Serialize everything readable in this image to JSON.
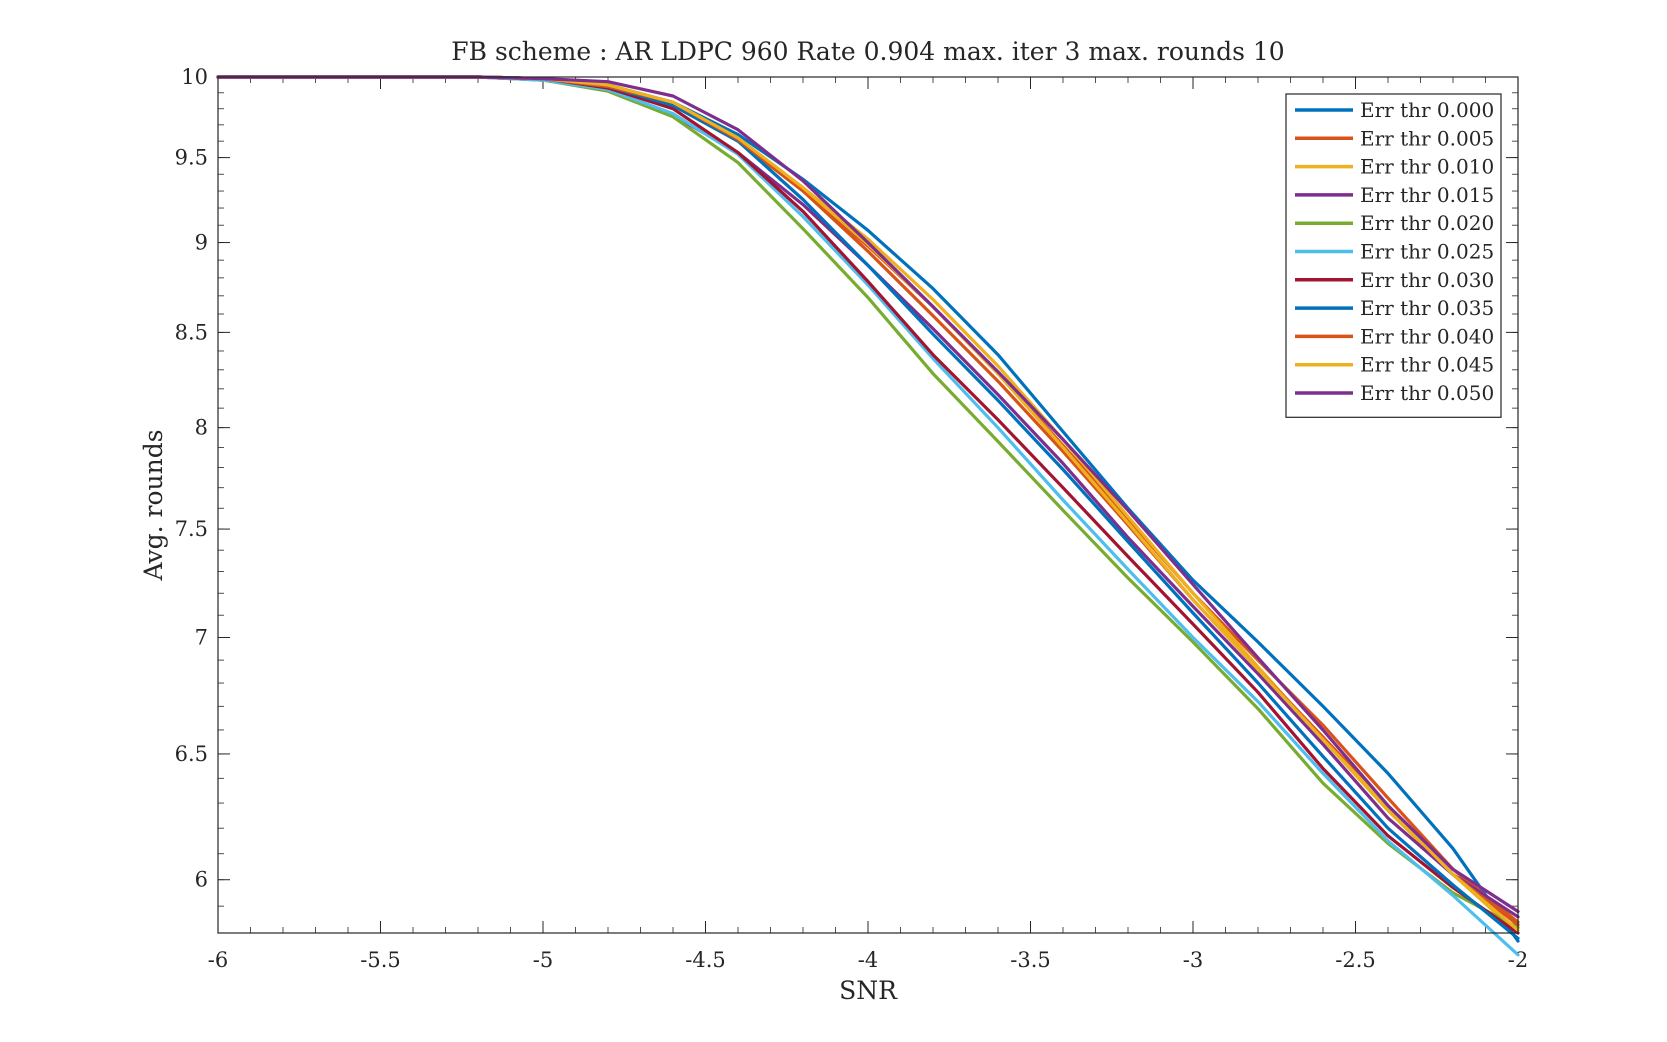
{
  "chart_data": {
    "type": "line",
    "title": "FB scheme : AR LDPC 960 Rate 0.904 max. iter 3 max. rounds 10",
    "xlabel": "SNR",
    "ylabel": "Avg. rounds",
    "xlim": [
      -6,
      -2
    ],
    "ylim": [
      5.8,
      10
    ],
    "yscale": "log",
    "grid": false,
    "legend_position": "top-right",
    "x": [
      -6,
      -5.8,
      -5.6,
      -5.4,
      -5.2,
      -5,
      -4.8,
      -4.6,
      -4.4,
      -4.2,
      -4,
      -3.8,
      -3.6,
      -3.4,
      -3.2,
      -3,
      -2.8,
      -2.6,
      -2.4,
      -2.2,
      -2
    ],
    "x_ticks": [
      -6,
      -5.5,
      -5,
      -4.5,
      -4,
      -3.5,
      -3,
      -2.5,
      -2
    ],
    "x_tick_labels": [
      "-6",
      "-5.5",
      "-5",
      "-4.5",
      "-4",
      "-3.5",
      "-3",
      "-2.5",
      "-2"
    ],
    "y_ticks": [
      10,
      9.5,
      9,
      8.5,
      8,
      7.5,
      7,
      6.5,
      6
    ],
    "y_tick_labels": [
      "10",
      "9.5",
      "9",
      "8.5",
      "8",
      "7.5",
      "7",
      "6.5",
      "6"
    ],
    "series": [
      {
        "name": "Err thr 0.000",
        "color": "#0072BD",
        "values": [
          10,
          10,
          10,
          10,
          10,
          9.99,
          9.95,
          9.84,
          9.64,
          9.37,
          9.07,
          8.74,
          8.38,
          7.98,
          7.6,
          7.26,
          6.98,
          6.7,
          6.42,
          6.12,
          5.77
        ]
      },
      {
        "name": "Err thr 0.005",
        "color": "#D95319",
        "values": [
          10,
          10,
          10,
          10,
          10,
          9.99,
          9.94,
          9.82,
          9.6,
          9.3,
          8.98,
          8.64,
          8.28,
          7.91,
          7.55,
          7.2,
          6.9,
          6.62,
          6.32,
          6.04,
          5.84
        ]
      },
      {
        "name": "Err thr 0.010",
        "color": "#EDB120",
        "values": [
          10,
          10,
          10,
          10,
          10,
          9.99,
          9.94,
          9.82,
          9.6,
          9.32,
          9.02,
          8.68,
          8.32,
          7.94,
          7.56,
          7.2,
          6.87,
          6.56,
          6.27,
          6.02,
          5.8
        ]
      },
      {
        "name": "Err thr 0.015",
        "color": "#7E2F8E",
        "values": [
          10,
          10,
          10,
          10,
          10,
          9.98,
          9.92,
          9.76,
          9.53,
          9.22,
          8.87,
          8.52,
          8.17,
          7.82,
          7.46,
          7.14,
          6.84,
          6.54,
          6.24,
          6.02,
          5.86
        ]
      },
      {
        "name": "Err thr 0.020",
        "color": "#77AC30",
        "values": [
          10,
          10,
          10,
          10,
          10,
          9.98,
          9.91,
          9.75,
          9.47,
          9.08,
          8.69,
          8.28,
          7.93,
          7.59,
          7.27,
          6.98,
          6.69,
          6.38,
          6.14,
          5.95,
          5.82
        ]
      },
      {
        "name": "Err thr 0.025",
        "color": "#4DBEEE",
        "values": [
          10,
          10,
          10,
          10,
          10,
          9.98,
          9.92,
          9.77,
          9.52,
          9.15,
          8.76,
          8.36,
          8.0,
          7.64,
          7.31,
          7.0,
          6.72,
          6.42,
          6.15,
          5.94,
          5.72
        ]
      },
      {
        "name": "Err thr 0.030",
        "color": "#A2142F",
        "values": [
          10,
          10,
          10,
          10,
          10,
          9.99,
          9.93,
          9.8,
          9.53,
          9.18,
          8.78,
          8.38,
          8.04,
          7.7,
          7.37,
          7.06,
          6.76,
          6.44,
          6.17,
          5.97,
          5.8
        ]
      },
      {
        "name": "Err thr 0.035",
        "color": "#0072BD",
        "values": [
          10,
          10,
          10,
          10,
          10,
          9.99,
          9.94,
          9.82,
          9.6,
          9.25,
          8.87,
          8.49,
          8.14,
          7.79,
          7.44,
          7.11,
          6.8,
          6.49,
          6.2,
          5.98,
          5.78
        ]
      },
      {
        "name": "Err thr 0.040",
        "color": "#D95319",
        "values": [
          10,
          10,
          10,
          10,
          10,
          9.99,
          9.94,
          9.84,
          9.61,
          9.3,
          8.95,
          8.59,
          8.24,
          7.88,
          7.52,
          7.17,
          6.86,
          6.57,
          6.29,
          6.02,
          5.83
        ]
      },
      {
        "name": "Err thr 0.045",
        "color": "#EDB120",
        "values": [
          10,
          10,
          10,
          10,
          10,
          9.99,
          9.95,
          9.84,
          9.62,
          9.32,
          8.99,
          8.64,
          8.28,
          7.9,
          7.53,
          7.17,
          6.86,
          6.56,
          6.28,
          6.02,
          5.81
        ]
      },
      {
        "name": "Err thr 0.050",
        "color": "#7E2F8E",
        "values": [
          10,
          10,
          10,
          10,
          10,
          9.99,
          9.97,
          9.88,
          9.67,
          9.36,
          9.0,
          8.64,
          8.29,
          7.94,
          7.59,
          7.24,
          6.91,
          6.6,
          6.29,
          6.04,
          5.88
        ]
      }
    ]
  }
}
